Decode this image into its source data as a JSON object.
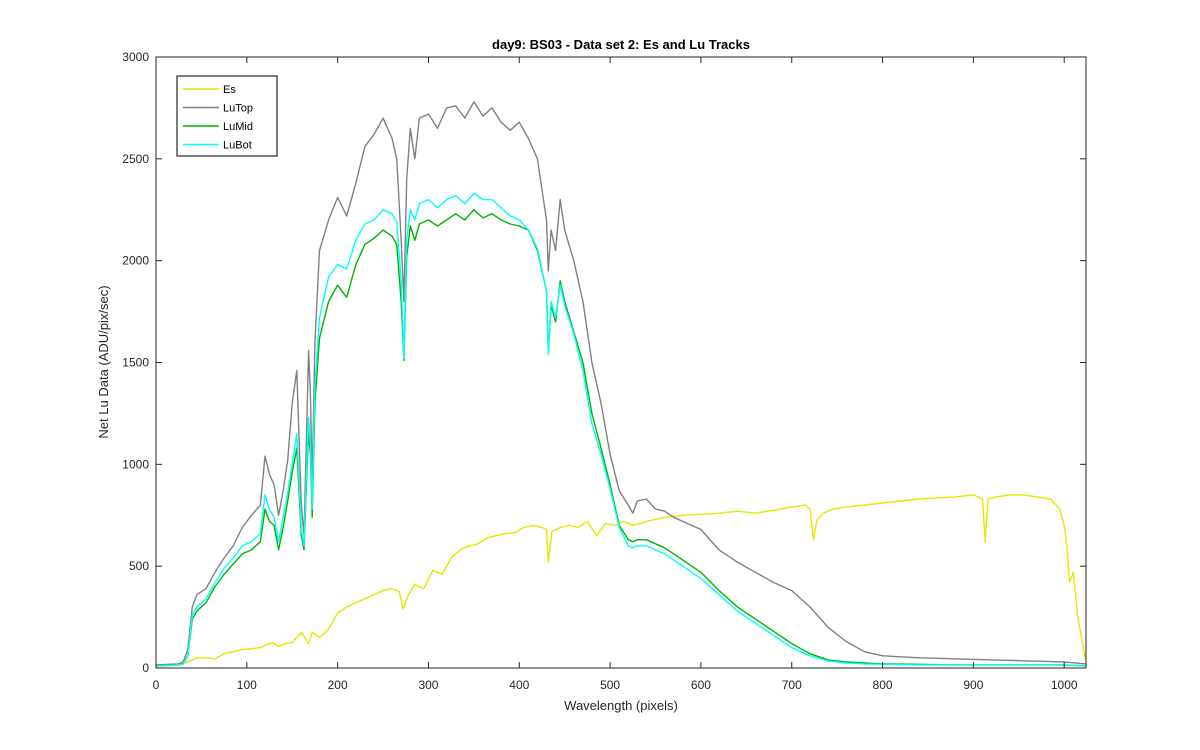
{
  "chart_data": {
    "type": "line",
    "title": "day9: BS03 - Data set 2: Es and Lu Tracks",
    "xlabel": "Wavelength (pixels)",
    "ylabel": "Net Lu Data (ADU/pix/sec)",
    "xlim": [
      0,
      1024
    ],
    "ylim": [
      0,
      3000
    ],
    "xticks": [
      0,
      100,
      200,
      300,
      400,
      500,
      600,
      700,
      800,
      900,
      1000
    ],
    "yticks": [
      0,
      500,
      1000,
      1500,
      2000,
      2500,
      3000
    ],
    "grid": false,
    "legend_position": "top-left",
    "series": [
      {
        "name": "Es",
        "color": "#e6e600",
        "x": [
          0,
          25,
          35,
          45,
          55,
          65,
          75,
          85,
          95,
          105,
          115,
          122,
          128,
          135,
          142,
          150,
          160,
          168,
          172,
          180,
          190,
          200,
          210,
          220,
          230,
          240,
          250,
          260,
          268,
          272,
          278,
          285,
          295,
          305,
          315,
          325,
          335,
          345,
          355,
          365,
          375,
          385,
          395,
          405,
          415,
          425,
          430,
          432,
          436,
          445,
          455,
          465,
          475,
          485,
          495,
          505,
          515,
          525,
          540,
          560,
          580,
          600,
          620,
          640,
          660,
          680,
          700,
          715,
          720,
          724,
          728,
          735,
          745,
          760,
          780,
          800,
          820,
          840,
          860,
          880,
          900,
          905,
          910,
          913,
          916,
          925,
          940,
          955,
          970,
          985,
          995,
          1000,
          1003,
          1006,
          1010,
          1015,
          1024
        ],
        "y": [
          15,
          20,
          30,
          50,
          50,
          45,
          70,
          80,
          90,
          95,
          100,
          115,
          125,
          105,
          120,
          125,
          175,
          120,
          175,
          150,
          190,
          270,
          300,
          320,
          340,
          360,
          380,
          390,
          375,
          290,
          360,
          410,
          390,
          480,
          460,
          540,
          580,
          600,
          610,
          640,
          650,
          660,
          665,
          690,
          700,
          690,
          680,
          520,
          670,
          690,
          700,
          690,
          720,
          650,
          710,
          700,
          720,
          700,
          720,
          740,
          750,
          755,
          760,
          770,
          760,
          775,
          790,
          800,
          780,
          630,
          730,
          760,
          780,
          790,
          800,
          810,
          820,
          830,
          835,
          840,
          850,
          840,
          830,
          620,
          830,
          840,
          850,
          850,
          840,
          830,
          780,
          700,
          600,
          420,
          470,
          250,
          30
        ]
      },
      {
        "name": "LuTop",
        "color": "#808080",
        "x": [
          0,
          25,
          30,
          35,
          40,
          45,
          55,
          65,
          75,
          85,
          95,
          105,
          115,
          120,
          125,
          130,
          135,
          140,
          145,
          150,
          155,
          160,
          163,
          166,
          168,
          170,
          172,
          175,
          180,
          190,
          200,
          210,
          220,
          230,
          240,
          250,
          260,
          265,
          270,
          273,
          276,
          280,
          285,
          290,
          300,
          310,
          320,
          330,
          340,
          350,
          360,
          370,
          380,
          390,
          400,
          410,
          420,
          430,
          432,
          435,
          440,
          445,
          450,
          460,
          470,
          480,
          490,
          500,
          510,
          520,
          525,
          530,
          540,
          550,
          560,
          570,
          580,
          590,
          600,
          620,
          640,
          660,
          680,
          700,
          720,
          740,
          760,
          780,
          800,
          840,
          880,
          920,
          960,
          1000,
          1024
        ],
        "y": [
          15,
          20,
          30,
          90,
          300,
          360,
          390,
          470,
          540,
          600,
          690,
          750,
          800,
          1040,
          950,
          900,
          750,
          870,
          1020,
          1300,
          1460,
          800,
          650,
          1200,
          1560,
          1350,
          900,
          1600,
          2050,
          2200,
          2310,
          2220,
          2380,
          2560,
          2620,
          2700,
          2600,
          2500,
          2100,
          1800,
          2400,
          2650,
          2500,
          2700,
          2720,
          2650,
          2750,
          2760,
          2700,
          2780,
          2710,
          2750,
          2680,
          2640,
          2680,
          2600,
          2500,
          2200,
          1950,
          2150,
          2050,
          2300,
          2150,
          2000,
          1800,
          1500,
          1300,
          1050,
          870,
          800,
          760,
          820,
          830,
          780,
          770,
          740,
          720,
          700,
          680,
          580,
          520,
          470,
          420,
          380,
          300,
          200,
          130,
          80,
          60,
          50,
          45,
          40,
          35,
          30,
          20
        ]
      },
      {
        "name": "LuMid",
        "color": "#00b300",
        "x": [
          0,
          25,
          30,
          35,
          40,
          45,
          55,
          65,
          75,
          85,
          95,
          105,
          115,
          120,
          125,
          130,
          135,
          140,
          145,
          150,
          155,
          160,
          163,
          166,
          168,
          170,
          172,
          175,
          180,
          190,
          200,
          210,
          220,
          230,
          240,
          250,
          260,
          265,
          270,
          273,
          276,
          280,
          285,
          290,
          300,
          310,
          320,
          330,
          340,
          350,
          360,
          370,
          380,
          390,
          400,
          410,
          420,
          430,
          432,
          435,
          440,
          445,
          450,
          460,
          470,
          480,
          490,
          500,
          510,
          520,
          525,
          530,
          540,
          550,
          560,
          570,
          580,
          590,
          600,
          620,
          640,
          660,
          680,
          700,
          720,
          740,
          760,
          780,
          800,
          840,
          880,
          920,
          960,
          1000,
          1024
        ],
        "y": [
          10,
          15,
          20,
          60,
          240,
          280,
          320,
          400,
          460,
          510,
          560,
          580,
          620,
          780,
          720,
          700,
          580,
          690,
          820,
          960,
          1080,
          650,
          580,
          950,
          1160,
          1050,
          740,
          1300,
          1620,
          1800,
          1880,
          1820,
          1980,
          2080,
          2110,
          2150,
          2120,
          2080,
          1800,
          1510,
          2020,
          2170,
          2100,
          2180,
          2200,
          2170,
          2200,
          2230,
          2200,
          2250,
          2210,
          2230,
          2200,
          2180,
          2170,
          2150,
          2050,
          1850,
          1550,
          1780,
          1700,
          1900,
          1800,
          1650,
          1500,
          1250,
          1080,
          900,
          700,
          630,
          620,
          630,
          630,
          610,
          590,
          560,
          530,
          500,
          470,
          380,
          300,
          240,
          180,
          120,
          70,
          40,
          30,
          25,
          20,
          18,
          15,
          15,
          15,
          15,
          10
        ]
      },
      {
        "name": "LuBot",
        "color": "#00ffff",
        "x": [
          0,
          25,
          30,
          35,
          40,
          45,
          55,
          65,
          75,
          85,
          95,
          105,
          115,
          120,
          125,
          130,
          135,
          140,
          145,
          150,
          155,
          160,
          163,
          166,
          168,
          170,
          172,
          175,
          180,
          190,
          200,
          210,
          220,
          230,
          240,
          250,
          260,
          265,
          270,
          273,
          276,
          280,
          285,
          290,
          300,
          310,
          320,
          330,
          340,
          350,
          360,
          370,
          380,
          390,
          400,
          410,
          420,
          430,
          432,
          435,
          440,
          445,
          450,
          460,
          470,
          480,
          490,
          500,
          510,
          520,
          525,
          530,
          540,
          550,
          560,
          570,
          580,
          590,
          600,
          620,
          640,
          660,
          680,
          700,
          720,
          740,
          760,
          780,
          800,
          840,
          880,
          920,
          960,
          1000,
          1024
        ],
        "y": [
          10,
          15,
          20,
          60,
          260,
          300,
          340,
          420,
          490,
          540,
          600,
          620,
          660,
          850,
          780,
          740,
          620,
          740,
          860,
          1000,
          1150,
          680,
          600,
          1000,
          1230,
          1100,
          780,
          1380,
          1720,
          1920,
          1980,
          1960,
          2100,
          2180,
          2200,
          2250,
          2230,
          2190,
          1900,
          1520,
          2100,
          2250,
          2200,
          2280,
          2300,
          2260,
          2300,
          2320,
          2280,
          2330,
          2300,
          2300,
          2260,
          2220,
          2200,
          2150,
          2060,
          1850,
          1540,
          1800,
          1720,
          1880,
          1780,
          1640,
          1460,
          1200,
          1050,
          880,
          690,
          600,
          590,
          600,
          600,
          580,
          560,
          530,
          500,
          470,
          440,
          360,
          280,
          220,
          160,
          100,
          60,
          35,
          25,
          20,
          18,
          15,
          15,
          15,
          15,
          15,
          10
        ]
      }
    ]
  }
}
